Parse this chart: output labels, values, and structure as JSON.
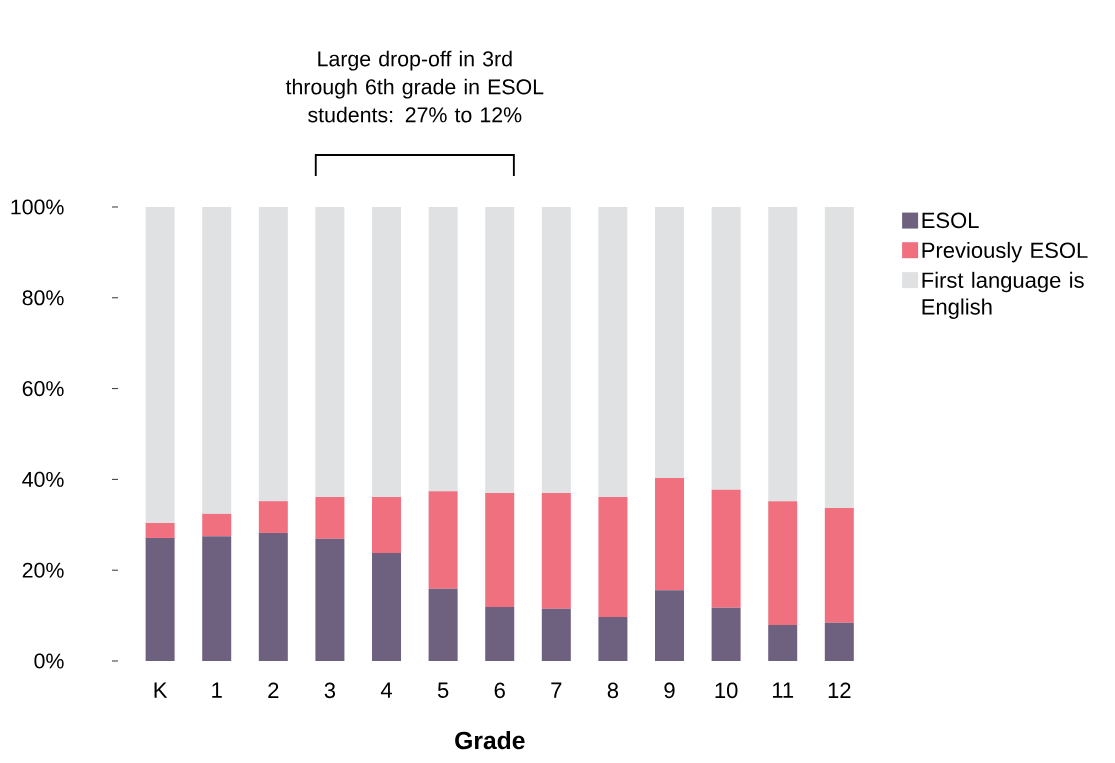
{
  "chart_data": {
    "type": "bar",
    "stacked": true,
    "xlabel": "Grade",
    "annotations": [
      "Large drop-off in 3rd through 6th grade in ESOL students: 27% to 12%"
    ],
    "categories": [
      "K",
      "1",
      "2",
      "3",
      "4",
      "5",
      "6",
      "7",
      "8",
      "9",
      "10",
      "11",
      "12"
    ],
    "series": [
      {
        "name": "ESOL",
        "color": "#6e607f",
        "values": [
          27.1,
          27.5,
          28.2,
          26.9,
          23.8,
          15.9,
          11.9,
          11.5,
          9.7,
          15.6,
          11.7,
          7.9,
          8.4
        ]
      },
      {
        "name": "Previously ESOL",
        "color": "#f07080",
        "values": [
          3.3,
          4.9,
          7.0,
          9.2,
          12.3,
          21.5,
          25.1,
          25.5,
          26.4,
          24.7,
          26.0,
          27.3,
          25.3
        ]
      },
      {
        "name": "First language is English",
        "color": "#e0e1e3",
        "values": [
          69.6,
          67.6,
          64.8,
          63.9,
          63.9,
          62.6,
          63.0,
          63.0,
          63.9,
          59.7,
          62.3,
          64.8,
          66.3
        ]
      }
    ],
    "ylim": [
      0,
      100
    ],
    "yticks": [
      {
        "value": 0,
        "label": "0%"
      },
      {
        "value": 20,
        "label": "20%"
      },
      {
        "value": 40,
        "label": "40%"
      },
      {
        "value": 60,
        "label": "60%"
      },
      {
        "value": 80,
        "label": "80%"
      },
      {
        "value": 100,
        "label": "100%"
      }
    ],
    "legend": "top right"
  }
}
